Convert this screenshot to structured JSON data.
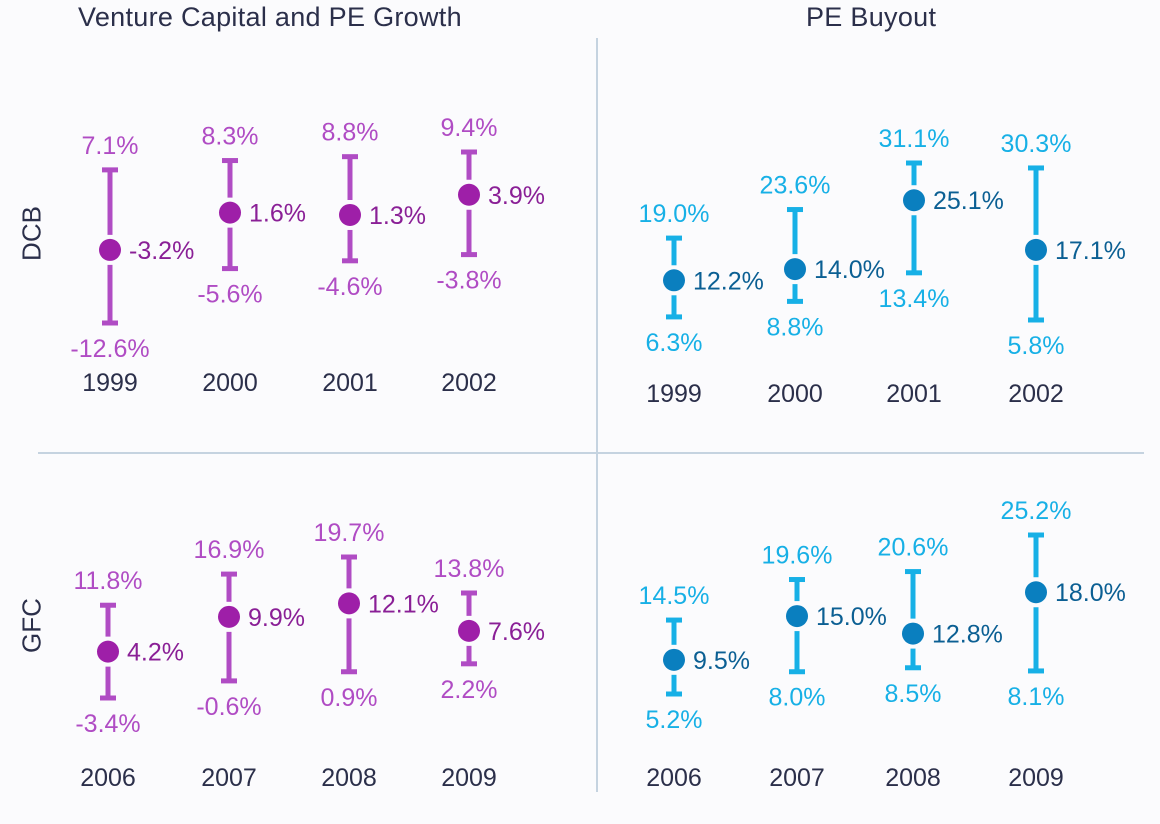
{
  "columns": {
    "left_title": "Venture Capital and PE Growth",
    "right_title": "PE Buyout"
  },
  "rows": {
    "top_label": "DCB",
    "bottom_label": "GFC"
  },
  "colors": {
    "vc_range": "#b04cc4",
    "vc_dot": "#9e1fa8",
    "vc_mid_text": "#8a1f96",
    "pe_range": "#17b0e6",
    "pe_dot": "#0a7fbf",
    "pe_mid_text": "#0b5f93",
    "tick_text": "#2b2f4a",
    "divider": "#c5d3e0"
  },
  "chart_data": [
    {
      "type": "range",
      "panel": "vc-dcb",
      "column_title": "Venture Capital and PE Growth",
      "row_label": "DCB",
      "categories": [
        "1999",
        "2000",
        "2001",
        "2002"
      ],
      "high": [
        7.1,
        8.3,
        8.8,
        9.4
      ],
      "mid": [
        -3.2,
        1.6,
        1.3,
        3.9
      ],
      "low": [
        -12.6,
        -5.6,
        -4.6,
        -3.8
      ],
      "high_labels": [
        "7.1%",
        "8.3%",
        "8.8%",
        "9.4%"
      ],
      "mid_labels": [
        "-3.2%",
        "1.6%",
        "1.3%",
        "3.9%"
      ],
      "low_labels": [
        "-12.6%",
        "-5.6%",
        "-4.6%",
        "-3.8%"
      ]
    },
    {
      "type": "range",
      "panel": "pe-dcb",
      "column_title": "PE Buyout",
      "row_label": "DCB",
      "categories": [
        "1999",
        "2000",
        "2001",
        "2002"
      ],
      "high": [
        19.0,
        23.6,
        31.1,
        30.3
      ],
      "mid": [
        12.2,
        14.0,
        25.1,
        17.1
      ],
      "low": [
        6.3,
        8.8,
        13.4,
        5.8
      ],
      "high_labels": [
        "19.0%",
        "23.6%",
        "31.1%",
        "30.3%"
      ],
      "mid_labels": [
        "12.2%",
        "14.0%",
        "25.1%",
        "17.1%"
      ],
      "low_labels": [
        "6.3%",
        "8.8%",
        "13.4%",
        "5.8%"
      ]
    },
    {
      "type": "range",
      "panel": "vc-gfc",
      "column_title": "Venture Capital and PE Growth",
      "row_label": "GFC",
      "categories": [
        "2006",
        "2007",
        "2008",
        "2009"
      ],
      "high": [
        11.8,
        16.9,
        19.7,
        13.8
      ],
      "mid": [
        4.2,
        9.9,
        12.1,
        7.6
      ],
      "low": [
        -3.4,
        -0.6,
        0.9,
        2.2
      ],
      "high_labels": [
        "11.8%",
        "16.9%",
        "19.7%",
        "13.8%"
      ],
      "mid_labels": [
        "4.2%",
        "9.9%",
        "12.1%",
        "7.6%"
      ],
      "low_labels": [
        "-3.4%",
        "-0.6%",
        "0.9%",
        "2.2%"
      ]
    },
    {
      "type": "range",
      "panel": "pe-gfc",
      "column_title": "PE Buyout",
      "row_label": "GFC",
      "categories": [
        "2006",
        "2007",
        "2008",
        "2009"
      ],
      "high": [
        14.5,
        19.6,
        20.6,
        25.2
      ],
      "mid": [
        9.5,
        15.0,
        12.8,
        18.0
      ],
      "low": [
        5.2,
        8.0,
        8.5,
        8.1
      ],
      "high_labels": [
        "14.5%",
        "19.6%",
        "20.6%",
        "25.2%"
      ],
      "mid_labels": [
        "9.5%",
        "15.0%",
        "12.8%",
        "18.0%"
      ],
      "low_labels": [
        "5.2%",
        "8.0%",
        "8.5%",
        "8.1%"
      ]
    }
  ]
}
